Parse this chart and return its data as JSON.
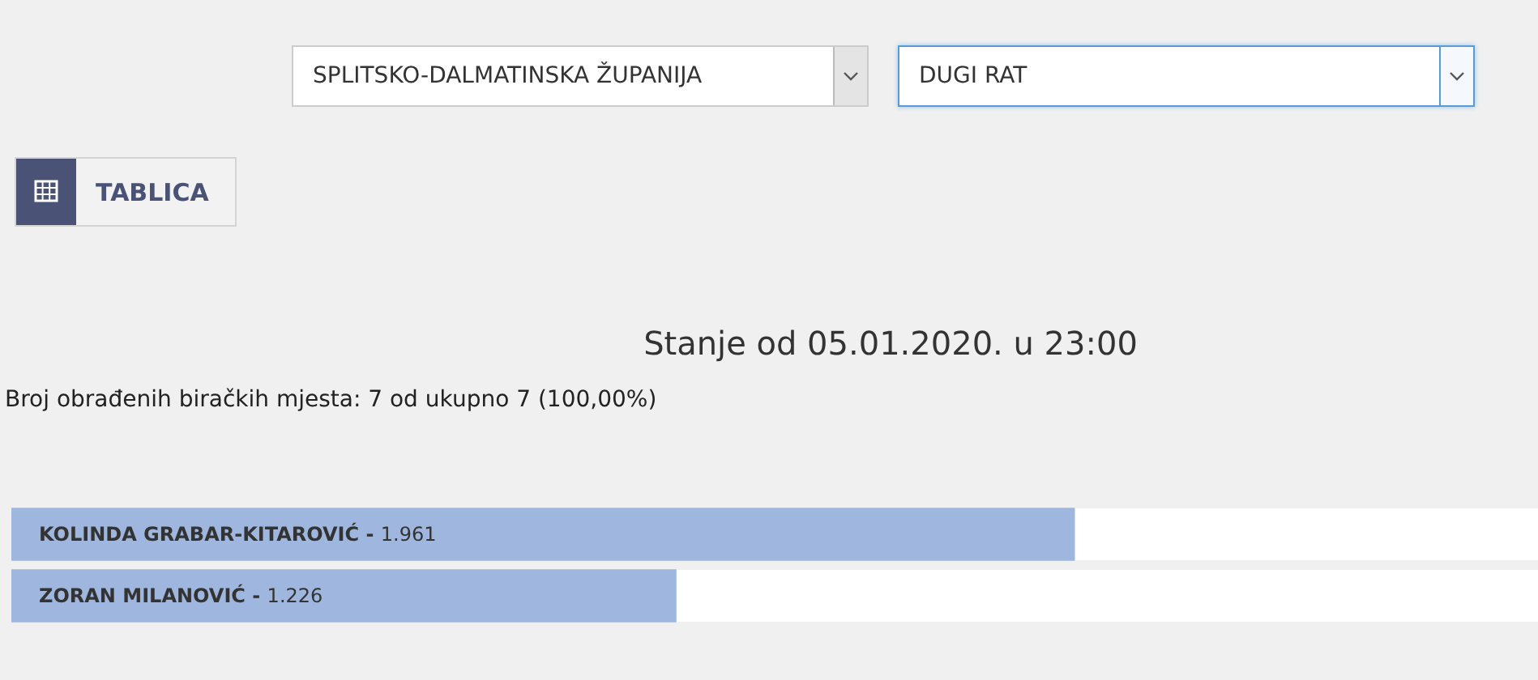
{
  "chart_data": {
    "type": "bar",
    "orientation": "horizontal",
    "title": "Stanje od 05.01.2020. u 23:00",
    "subtitle": "Broj obrađenih biračkih mjesta: 7 od ukupno 7 (100,00%)",
    "annotations": [
      "SPLITSKO-DALMATINSKA ŽUPANIJA",
      "DUGI RAT",
      "TABLICA",
      "-"
    ],
    "categories": [
      "KOLINDA GRABAR-KITAROVIĆ",
      "ZORAN MILANOVIĆ"
    ],
    "values": [
      1961,
      1226
    ],
    "value_labels": [
      "1.961",
      "1.226"
    ],
    "color": "#9fb7de",
    "tick_labels": false
  }
}
